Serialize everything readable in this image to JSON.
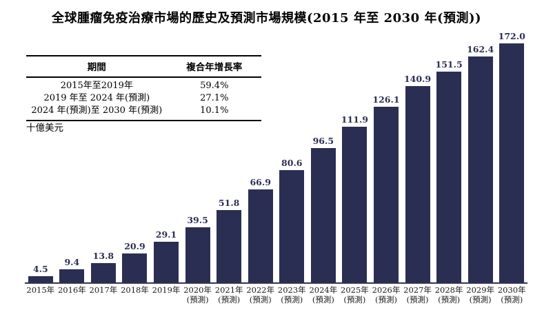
{
  "title": "全球腫瘤免疫治療市場的歷史及預測市場規模(2015 年至 2030 年(預測))",
  "cagr_table": {
    "headers": [
      "期間",
      "複合年增長率"
    ],
    "rows": [
      [
        "2015年至2019年",
        "59.4%"
      ],
      [
        "2019 年至 2024 年(預測)",
        "27.1%"
      ],
      [
        "2024 年(預測)至 2030 年(預測)",
        "10.1%"
      ]
    ]
  },
  "unit_label": "十億美元",
  "chart_data": {
    "type": "bar",
    "title": "全球腫瘤免疫治療市場的歷史及預測市場規模(2015 年至 2030 年(預測))",
    "ylabel": "十億美元",
    "xlabel": "",
    "categories": [
      "2015年",
      "2016年",
      "2017年",
      "2018年",
      "2019年",
      "2020年",
      "2021年",
      "2022年",
      "2023年",
      "2024年",
      "2025年",
      "2026年",
      "2027年",
      "2028年",
      "2029年",
      "2030年"
    ],
    "forecast_flags": [
      false,
      false,
      false,
      false,
      false,
      true,
      true,
      true,
      true,
      true,
      true,
      true,
      true,
      true,
      true,
      true
    ],
    "forecast_label": "(預測)",
    "values": [
      4.5,
      9.4,
      13.8,
      20.9,
      29.1,
      39.5,
      51.8,
      66.9,
      80.6,
      96.5,
      111.9,
      126.1,
      140.9,
      151.5,
      162.4,
      172.0
    ],
    "ylim": [
      0,
      180
    ],
    "grid": false,
    "legend": false,
    "bar_color": "#2b2e53",
    "value_label_color": "#2b2e53",
    "axis_line_color": "#33344f"
  }
}
